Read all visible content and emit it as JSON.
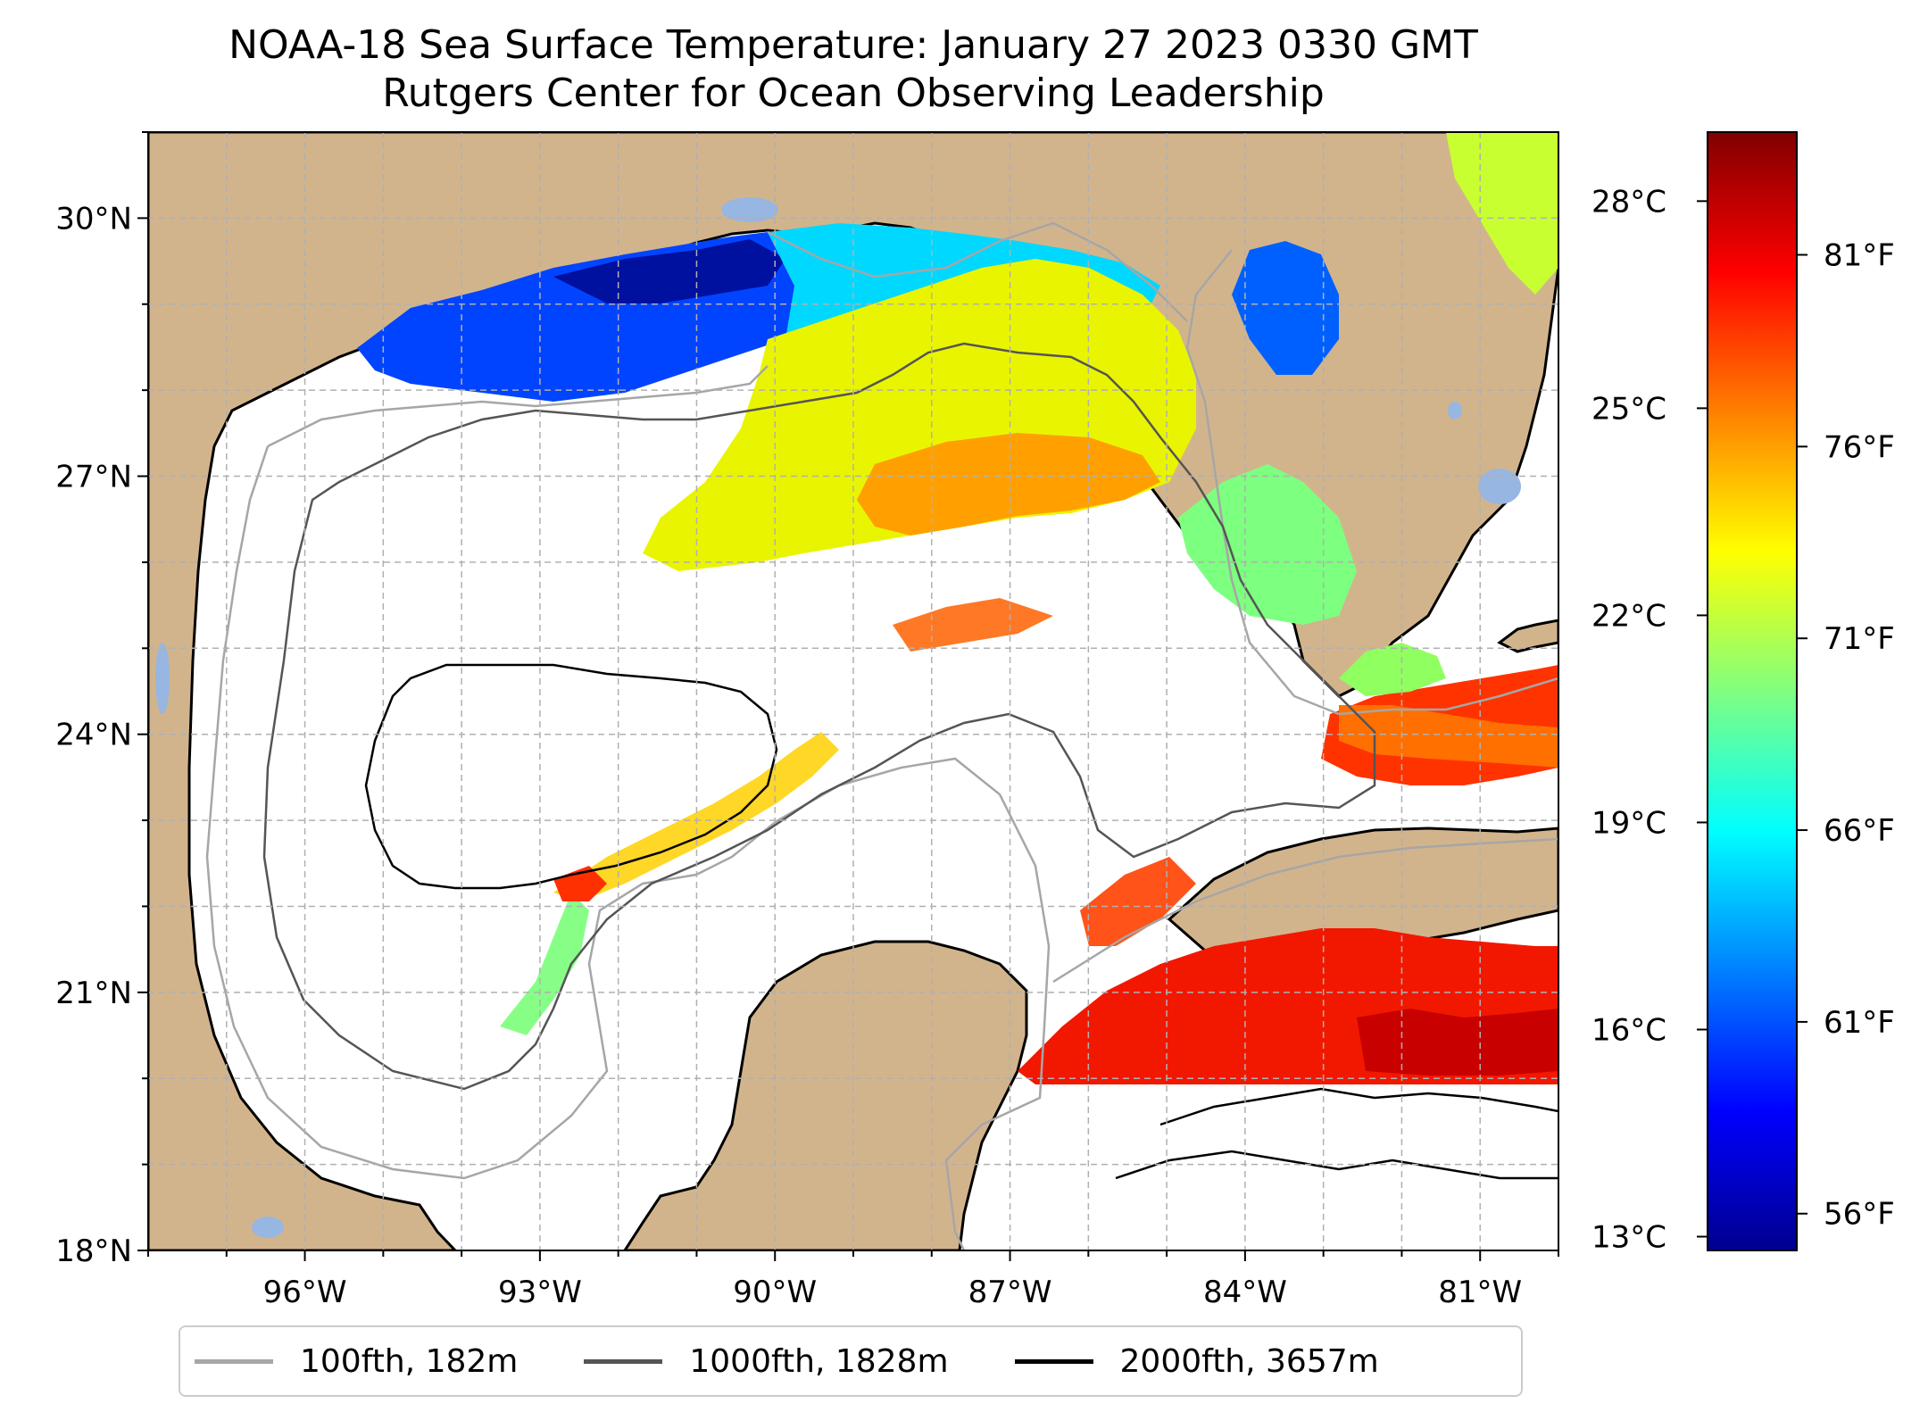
{
  "title": {
    "line1": "NOAA-18 Sea Surface Temperature: January 27 2023 0330 GMT",
    "line2": "Rutgers Center for Ocean Observing Leadership"
  },
  "map": {
    "region": "Gulf of Mexico",
    "lon_range": [
      -98.0,
      -80.0
    ],
    "lat_range": [
      18.0,
      31.0
    ],
    "lon_ticks": [
      {
        "value": -96,
        "label": "96°W"
      },
      {
        "value": -93,
        "label": "93°W"
      },
      {
        "value": -90,
        "label": "90°W"
      },
      {
        "value": -87,
        "label": "87°W"
      },
      {
        "value": -84,
        "label": "84°W"
      },
      {
        "value": -81,
        "label": "81°W"
      }
    ],
    "lat_ticks": [
      {
        "value": 18,
        "label": "18°N"
      },
      {
        "value": 21,
        "label": "21°N"
      },
      {
        "value": 24,
        "label": "24°N"
      },
      {
        "value": 27,
        "label": "27°N"
      },
      {
        "value": 30,
        "label": "30°N"
      }
    ],
    "gridlines": true,
    "land_color": "#d2b48c",
    "lake_color": "#97b6e1"
  },
  "colorbar": {
    "colormap": "jet",
    "range_celsius": [
      12.8,
      29.0
    ],
    "celsius_ticks": [
      {
        "value": 13,
        "label": "13°C"
      },
      {
        "value": 16,
        "label": "16°C"
      },
      {
        "value": 19,
        "label": "19°C"
      },
      {
        "value": 22,
        "label": "22°C"
      },
      {
        "value": 25,
        "label": "25°C"
      },
      {
        "value": 28,
        "label": "28°C"
      }
    ],
    "fahrenheit_ticks": [
      {
        "value": 56,
        "label": "56°F"
      },
      {
        "value": 61,
        "label": "61°F"
      },
      {
        "value": 66,
        "label": "66°F"
      },
      {
        "value": 71,
        "label": "71°F"
      },
      {
        "value": 76,
        "label": "76°F"
      },
      {
        "value": 81,
        "label": "81°F"
      }
    ]
  },
  "legend": {
    "placement": "bottom",
    "entries": [
      {
        "label": "100fth, 182m",
        "color": "#a6a6a6"
      },
      {
        "label": "1000fth, 1828m",
        "color": "#555555"
      },
      {
        "label": "2000fth, 3657m",
        "color": "#000000"
      }
    ]
  }
}
